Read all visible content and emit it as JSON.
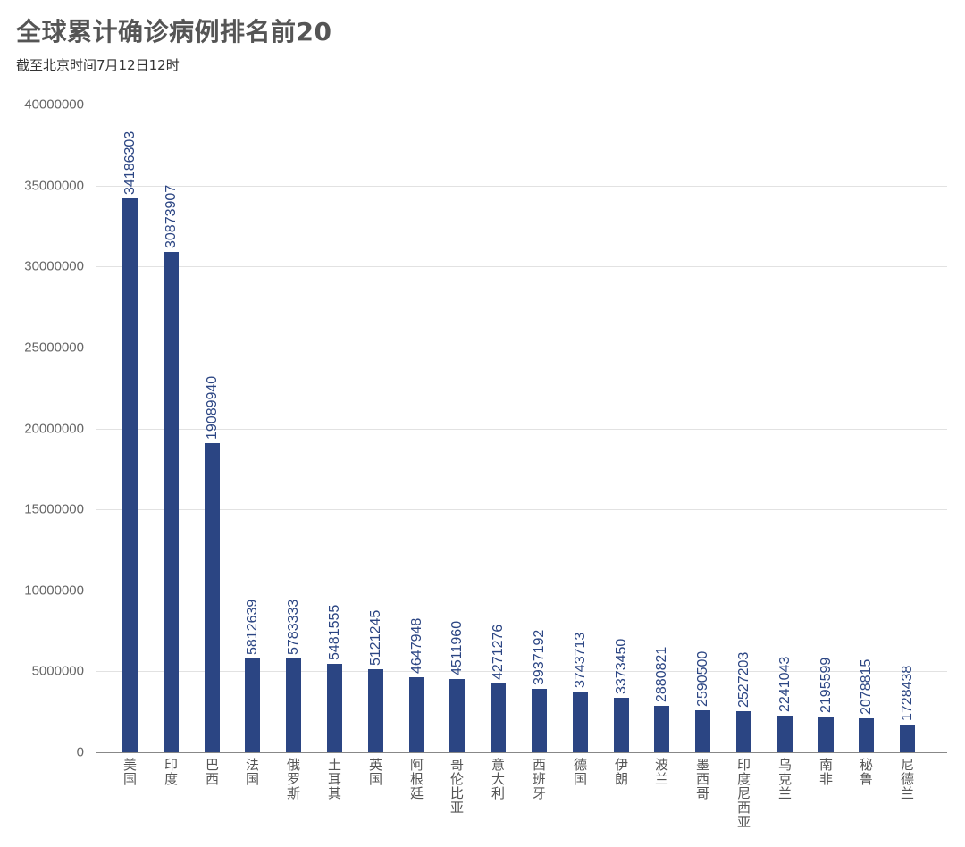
{
  "header": {
    "title": "全球累计确诊病例排名前20",
    "subtitle": "截至北京时间7月12日12时"
  },
  "style": {
    "bar_color": "#2b4583",
    "grid_color": "#e2e2e2"
  },
  "y_axis": {
    "ticks": [
      "40000000",
      "35000000",
      "30000000",
      "25000000",
      "20000000",
      "15000000",
      "10000000",
      "5000000",
      "0"
    ]
  },
  "chart_data": {
    "type": "bar",
    "title": "全球累计确诊病例排名前20",
    "subtitle": "截至北京时间7月12日12时",
    "xlabel": "",
    "ylabel": "",
    "ylim": [
      0,
      40000000
    ],
    "yticks": [
      0,
      5000000,
      10000000,
      15000000,
      20000000,
      25000000,
      30000000,
      35000000,
      40000000
    ],
    "grid": true,
    "legend": null,
    "data_labels": "vertical, above bars",
    "categories": [
      "美国",
      "印度",
      "巴西",
      "法国",
      "俄罗斯",
      "土耳其",
      "英国",
      "阿根廷",
      "哥伦比亚",
      "意大利",
      "西班牙",
      "德国",
      "伊朗",
      "波兰",
      "墨西哥",
      "印度尼西亚",
      "乌克兰",
      "南非",
      "秘鲁",
      "尼德兰"
    ],
    "values": [
      34186303,
      30873907,
      19089940,
      5812639,
      5783333,
      5481555,
      5121245,
      4647948,
      4511960,
      4271276,
      3937192,
      3743713,
      3373450,
      2880821,
      2590500,
      2527203,
      2241043,
      2195599,
      2078815,
      1728438
    ]
  }
}
